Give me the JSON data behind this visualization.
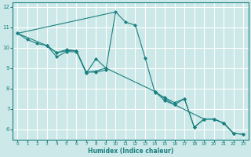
{
  "xlabel": "Humidex (Indice chaleur)",
  "xlim": [
    -0.5,
    23.5
  ],
  "ylim": [
    5.5,
    12.2
  ],
  "yticks": [
    6,
    7,
    8,
    9,
    10,
    11,
    12
  ],
  "xticks": [
    0,
    1,
    2,
    3,
    4,
    5,
    6,
    7,
    8,
    9,
    10,
    11,
    12,
    13,
    14,
    15,
    16,
    17,
    18,
    19,
    20,
    21,
    22,
    23
  ],
  "bg_color": "#cde8e8",
  "grid_color": "#ffffff",
  "line_color": "#1a8080",
  "series1_x": [
    0,
    1,
    2,
    3,
    4,
    5,
    6,
    7,
    8,
    9,
    10,
    11,
    12,
    13,
    14,
    15,
    16,
    17,
    18,
    19,
    20,
    21,
    22
  ],
  "series1_y": [
    10.7,
    10.4,
    10.2,
    10.1,
    9.55,
    9.8,
    9.8,
    8.8,
    8.8,
    8.9,
    11.75,
    11.25,
    11.1,
    9.5,
    7.8,
    7.55,
    7.3,
    7.5,
    6.1,
    6.5,
    6.5,
    6.3,
    5.8
  ],
  "series2_x": [
    0,
    3,
    4,
    5,
    6,
    7,
    8,
    9,
    14,
    15,
    16,
    17,
    18,
    19,
    20,
    21,
    22,
    23
  ],
  "series2_y": [
    10.7,
    10.1,
    9.75,
    9.85,
    9.85,
    8.8,
    8.85,
    9.0,
    7.85,
    7.5,
    7.2,
    7.5,
    6.1,
    6.5,
    6.5,
    6.3,
    5.8,
    5.75
  ],
  "series3_x": [
    3,
    4,
    5,
    6,
    7,
    8,
    9
  ],
  "series3_y": [
    10.1,
    9.75,
    9.9,
    9.85,
    8.75,
    9.45,
    9.0
  ],
  "series4_x": [
    0,
    10
  ],
  "series4_y": [
    10.7,
    11.75
  ],
  "series5_x": [
    14,
    15,
    16,
    19,
    20,
    21,
    22,
    23
  ],
  "series5_y": [
    7.85,
    7.4,
    7.2,
    6.5,
    6.5,
    6.3,
    5.8,
    5.75
  ]
}
